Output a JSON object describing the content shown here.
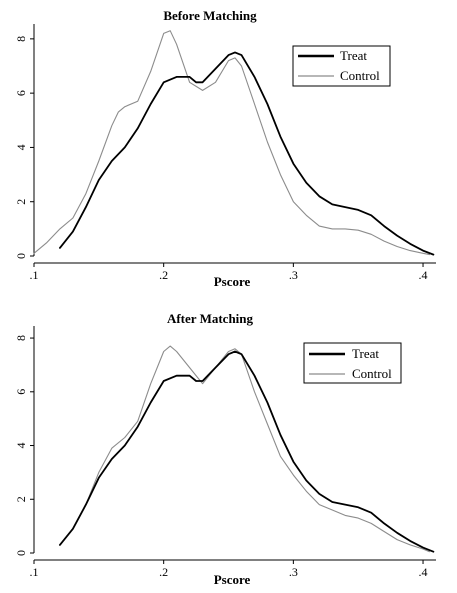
{
  "chart_data": [
    {
      "type": "line",
      "title": "Before Matching",
      "xlabel": "Pscore",
      "ylabel": "",
      "xlim": [
        0.1,
        0.41
      ],
      "ylim": [
        0,
        8.4
      ],
      "x_ticks": [
        0.1,
        0.2,
        0.3,
        0.4
      ],
      "x_tick_labels": [
        ".1",
        ".2",
        ".3",
        ".4"
      ],
      "y_ticks": [
        0,
        2,
        4,
        6,
        8
      ],
      "y_tick_labels": [
        "0",
        "2",
        "4",
        "6",
        "8"
      ],
      "grid": false,
      "legend_position": "top-right",
      "series": [
        {
          "name": "Treat",
          "color": "#000000",
          "x": [
            0.12,
            0.13,
            0.14,
            0.15,
            0.16,
            0.17,
            0.18,
            0.19,
            0.2,
            0.21,
            0.22,
            0.225,
            0.23,
            0.24,
            0.25,
            0.255,
            0.26,
            0.27,
            0.28,
            0.29,
            0.3,
            0.31,
            0.32,
            0.33,
            0.34,
            0.35,
            0.36,
            0.37,
            0.38,
            0.39,
            0.4,
            0.408
          ],
          "y": [
            0.3,
            0.9,
            1.8,
            2.8,
            3.5,
            4.0,
            4.7,
            5.6,
            6.4,
            6.6,
            6.6,
            6.4,
            6.4,
            6.9,
            7.4,
            7.5,
            7.4,
            6.6,
            5.6,
            4.4,
            3.4,
            2.7,
            2.2,
            1.9,
            1.8,
            1.7,
            1.5,
            1.1,
            0.75,
            0.45,
            0.2,
            0.05
          ]
        },
        {
          "name": "Control",
          "color": "#8c8c8c",
          "x": [
            0.1,
            0.11,
            0.12,
            0.13,
            0.14,
            0.15,
            0.16,
            0.165,
            0.17,
            0.18,
            0.19,
            0.2,
            0.205,
            0.21,
            0.22,
            0.23,
            0.24,
            0.25,
            0.255,
            0.26,
            0.27,
            0.28,
            0.29,
            0.3,
            0.31,
            0.32,
            0.33,
            0.34,
            0.35,
            0.36,
            0.37,
            0.38,
            0.39,
            0.4,
            0.405
          ],
          "y": [
            0.1,
            0.5,
            1.0,
            1.4,
            2.3,
            3.5,
            4.8,
            5.3,
            5.5,
            5.7,
            6.8,
            8.2,
            8.3,
            7.8,
            6.4,
            6.1,
            6.4,
            7.2,
            7.3,
            7.0,
            5.6,
            4.2,
            3.0,
            2.0,
            1.5,
            1.1,
            1.0,
            1.0,
            0.95,
            0.8,
            0.55,
            0.35,
            0.2,
            0.1,
            0.05
          ]
        }
      ]
    },
    {
      "type": "line",
      "title": "After Matching",
      "xlabel": "Pscore",
      "ylabel": "",
      "xlim": [
        0.1,
        0.41
      ],
      "ylim": [
        0,
        8.3
      ],
      "x_ticks": [
        0.1,
        0.2,
        0.3,
        0.4
      ],
      "x_tick_labels": [
        ".1",
        ".2",
        ".3",
        ".4"
      ],
      "y_ticks": [
        0,
        2,
        4,
        6,
        8
      ],
      "y_tick_labels": [
        "0",
        "2",
        "4",
        "6",
        "8"
      ],
      "grid": false,
      "legend_position": "top-right",
      "series": [
        {
          "name": "Treat",
          "color": "#000000",
          "x": [
            0.12,
            0.13,
            0.14,
            0.15,
            0.16,
            0.17,
            0.18,
            0.19,
            0.2,
            0.21,
            0.22,
            0.225,
            0.23,
            0.24,
            0.25,
            0.255,
            0.26,
            0.27,
            0.28,
            0.29,
            0.3,
            0.31,
            0.32,
            0.33,
            0.34,
            0.35,
            0.36,
            0.37,
            0.38,
            0.39,
            0.4,
            0.408
          ],
          "y": [
            0.3,
            0.9,
            1.8,
            2.8,
            3.5,
            4.0,
            4.7,
            5.6,
            6.4,
            6.6,
            6.6,
            6.4,
            6.4,
            6.9,
            7.4,
            7.5,
            7.4,
            6.6,
            5.6,
            4.4,
            3.4,
            2.7,
            2.2,
            1.9,
            1.8,
            1.7,
            1.5,
            1.1,
            0.75,
            0.45,
            0.2,
            0.05
          ]
        },
        {
          "name": "Control",
          "color": "#8c8c8c",
          "x": [
            0.12,
            0.13,
            0.14,
            0.15,
            0.16,
            0.17,
            0.18,
            0.19,
            0.2,
            0.205,
            0.21,
            0.22,
            0.23,
            0.24,
            0.25,
            0.255,
            0.26,
            0.27,
            0.28,
            0.29,
            0.3,
            0.31,
            0.32,
            0.33,
            0.34,
            0.35,
            0.36,
            0.37,
            0.38,
            0.39,
            0.4,
            0.405
          ],
          "y": [
            0.3,
            0.9,
            1.8,
            3.0,
            3.9,
            4.3,
            4.9,
            6.3,
            7.5,
            7.7,
            7.5,
            6.9,
            6.3,
            6.9,
            7.5,
            7.6,
            7.4,
            6.0,
            4.8,
            3.6,
            2.9,
            2.3,
            1.8,
            1.6,
            1.4,
            1.3,
            1.1,
            0.8,
            0.5,
            0.3,
            0.15,
            0.05
          ]
        }
      ]
    }
  ]
}
